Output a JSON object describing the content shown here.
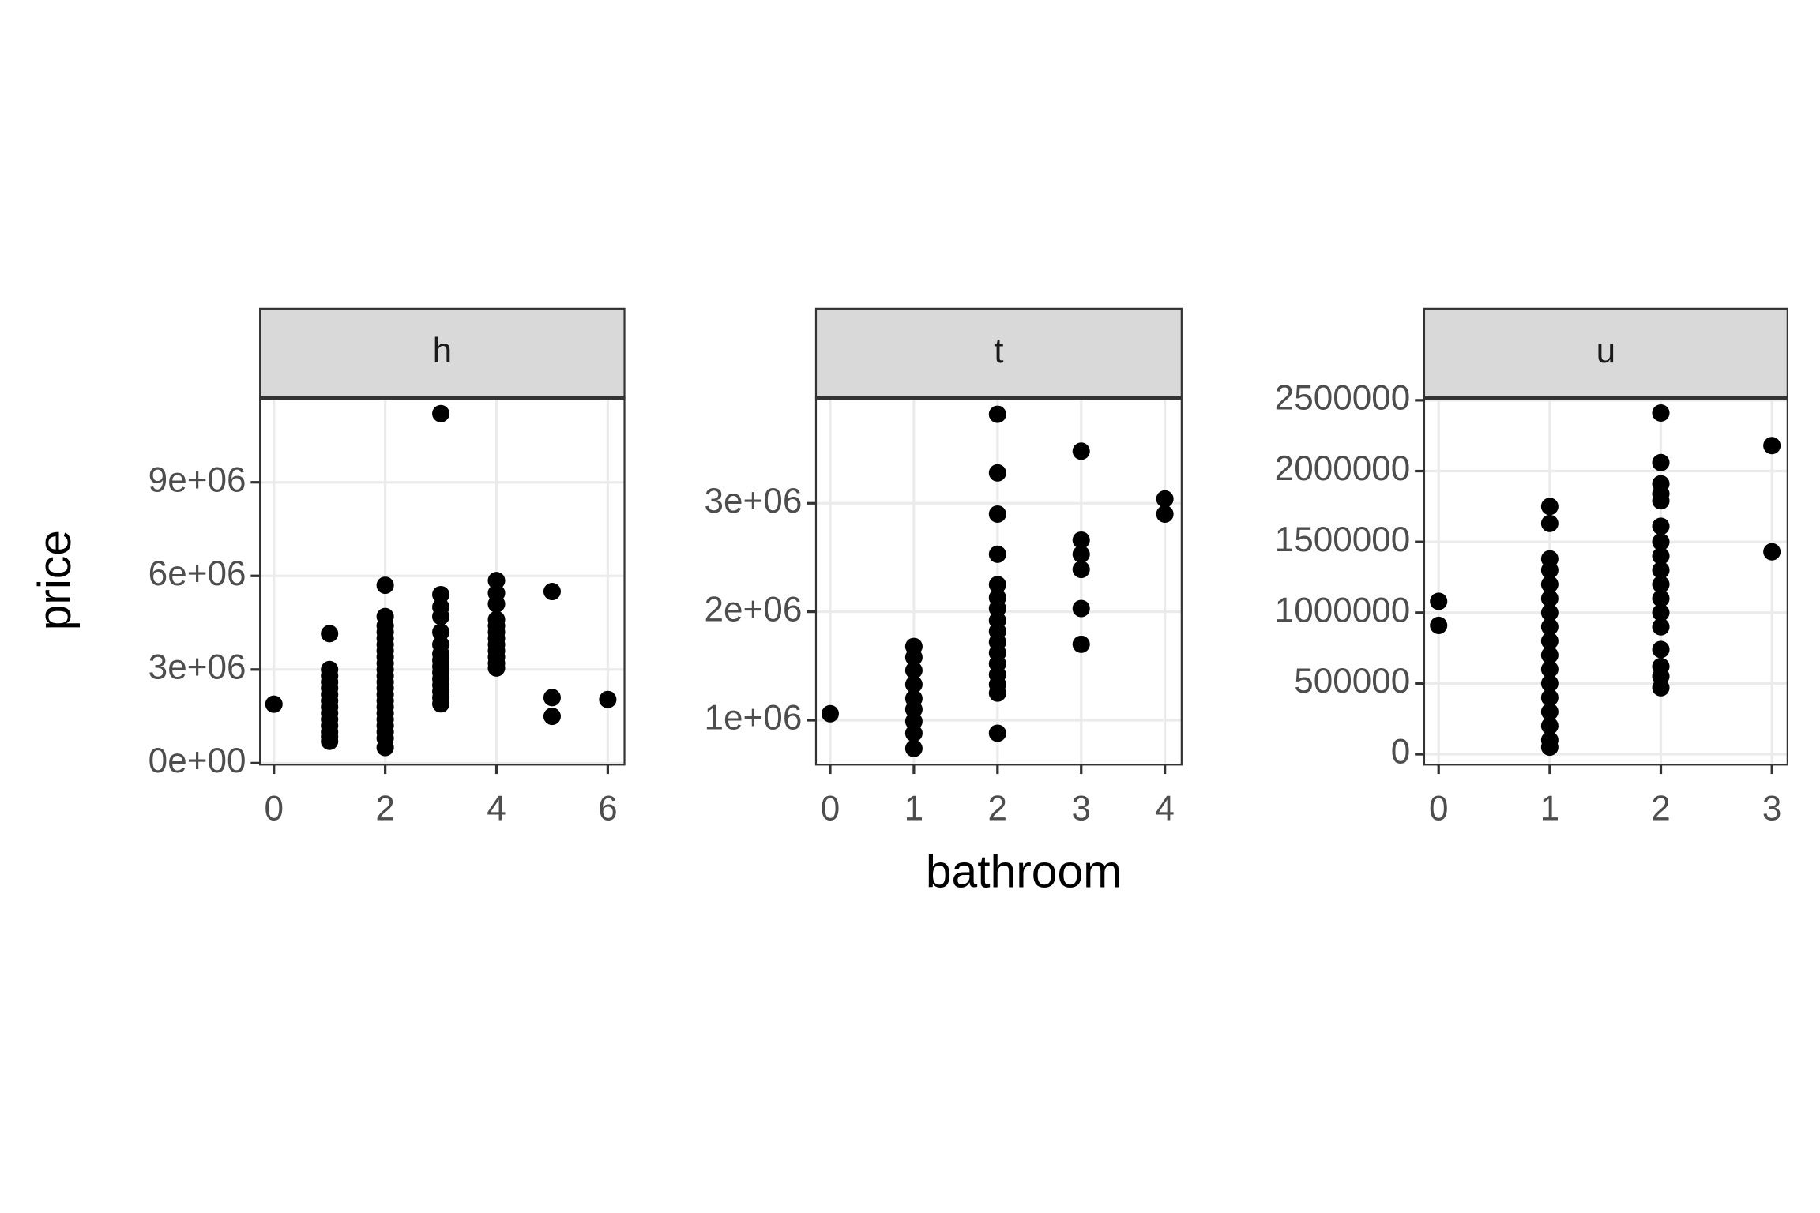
{
  "xlabel": "bathroom",
  "ylabel": "price",
  "chart_data": [
    {
      "type": "scatter",
      "title": "h",
      "color": "#000000",
      "grid": true,
      "x": [
        0,
        1,
        1,
        1,
        1,
        1,
        1,
        1,
        1,
        1,
        1,
        1,
        1,
        1,
        1,
        2,
        2,
        2,
        2,
        2,
        2,
        2,
        2,
        2,
        2,
        2,
        2,
        2,
        2,
        2,
        2,
        2,
        2,
        2,
        2,
        2,
        2,
        3,
        3,
        3,
        3,
        3,
        3,
        3,
        3,
        3,
        3,
        3,
        3,
        3,
        3,
        3,
        4,
        4,
        4,
        4,
        4,
        4,
        4,
        4,
        4,
        4,
        4,
        4,
        5,
        5,
        5,
        6
      ],
      "y": [
        1890000,
        4150000,
        3000000,
        2800000,
        2600000,
        2400000,
        2200000,
        2000000,
        1800000,
        1600000,
        1400000,
        1200000,
        1000000,
        850000,
        700000,
        5700000,
        4700000,
        4400000,
        4200000,
        4000000,
        3800000,
        3600000,
        3400000,
        3200000,
        3000000,
        2800000,
        2600000,
        2400000,
        2200000,
        2000000,
        1800000,
        1600000,
        1400000,
        1200000,
        1000000,
        800000,
        500000,
        11200000,
        5400000,
        5000000,
        4700000,
        4200000,
        3800000,
        3500000,
        3300000,
        3100000,
        2900000,
        2700000,
        2500000,
        2300000,
        2100000,
        1900000,
        5850000,
        5450000,
        5100000,
        4600000,
        4400000,
        4200000,
        4000000,
        3800000,
        3600000,
        3400000,
        3200000,
        3050000,
        5500000,
        2100000,
        1500000,
        2040000
      ],
      "xlim": [
        -0.25,
        6.3
      ],
      "xticks": [
        0,
        2,
        4,
        6
      ],
      "ylim": [
        -50000,
        11700000
      ],
      "yticks": [
        {
          "value": 0,
          "label": "0e+00"
        },
        {
          "value": 3000000,
          "label": "3e+06"
        },
        {
          "value": 6000000,
          "label": "6e+06"
        },
        {
          "value": 9000000,
          "label": "9e+06"
        }
      ]
    },
    {
      "type": "scatter",
      "title": "t",
      "color": "#000000",
      "grid": true,
      "x": [
        0,
        1,
        1,
        1,
        1,
        1,
        1,
        1,
        1,
        1,
        2,
        2,
        2,
        2,
        2,
        2,
        2,
        2,
        2,
        2,
        2,
        2,
        2,
        2,
        2,
        2,
        3,
        3,
        3,
        3,
        3,
        3,
        4,
        4
      ],
      "y": [
        1060000,
        1680000,
        1580000,
        1460000,
        1330000,
        1200000,
        1100000,
        990000,
        880000,
        740000,
        3820000,
        3280000,
        2900000,
        2530000,
        2250000,
        2130000,
        2030000,
        1920000,
        1820000,
        1720000,
        1620000,
        1520000,
        1420000,
        1330000,
        1250000,
        880000,
        3480000,
        2660000,
        2530000,
        2390000,
        2030000,
        1700000,
        3040000,
        2900000
      ],
      "xlim": [
        -0.17,
        4.2
      ],
      "xticks": [
        0,
        1,
        2,
        3,
        4
      ],
      "ylim": [
        590000,
        3970000
      ],
      "yticks": [
        {
          "value": 1000000,
          "label": "1e+06"
        },
        {
          "value": 2000000,
          "label": "2e+06"
        },
        {
          "value": 3000000,
          "label": "3e+06"
        }
      ]
    },
    {
      "type": "scatter",
      "title": "u",
      "color": "#000000",
      "grid": true,
      "x": [
        0,
        0,
        1,
        1,
        1,
        1,
        1,
        1,
        1,
        1,
        1,
        1,
        1,
        1,
        1,
        1,
        1,
        1,
        1,
        2,
        2,
        2,
        2,
        2,
        2,
        2,
        2,
        2,
        2,
        2,
        2,
        2,
        2,
        2,
        2,
        2,
        3,
        3
      ],
      "y": [
        1080000,
        910000,
        1750000,
        1630000,
        1380000,
        1300000,
        1200000,
        1100000,
        1000000,
        900000,
        800000,
        700000,
        600000,
        500000,
        400000,
        300000,
        200000,
        100000,
        50000,
        2410000,
        2060000,
        1910000,
        1840000,
        1790000,
        1610000,
        1500000,
        1400000,
        1300000,
        1200000,
        1100000,
        1000000,
        900000,
        740000,
        620000,
        550000,
        470000,
        2180000,
        1430000
      ],
      "xlim": [
        -0.13,
        3.14
      ],
      "xticks": [
        0,
        1,
        2,
        3
      ],
      "ylim": [
        -74000,
        2516000
      ],
      "yticks": [
        0,
        500000,
        1000000,
        1500000,
        2000000,
        2500000
      ]
    }
  ]
}
